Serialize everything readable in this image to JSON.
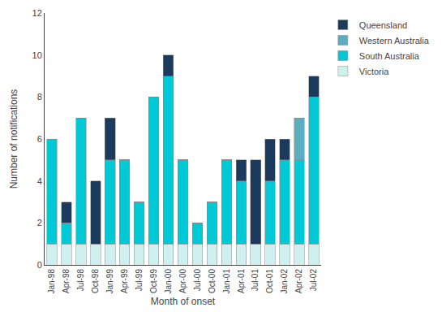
{
  "chart_data": {
    "type": "bar",
    "stacked": true,
    "xlabel": "Month of onset",
    "ylabel": "Number of notifications",
    "categories": [
      "Jan-98",
      "Apr-98",
      "Jul-98",
      "Oct-98",
      "Jan-99",
      "Apr-99",
      "Jul-99",
      "Oct-99",
      "Jan-00",
      "Apr-00",
      "Jul-00",
      "Oct-00",
      "Jan-01",
      "Apr-01",
      "Jul-01",
      "Oct-01",
      "Jan-02",
      "Apr-02",
      "Jul-02"
    ],
    "series": [
      {
        "name": "Victoria",
        "color": "#d0f0f0",
        "values": [
          1,
          1,
          1,
          1,
          1,
          1,
          1,
          1,
          1,
          1,
          1,
          1,
          1,
          1,
          1,
          1,
          1,
          1,
          1
        ]
      },
      {
        "name": "South Australia",
        "color": "#00c8d4",
        "values": [
          5,
          1,
          6,
          0,
          4,
          4,
          2,
          7,
          8,
          4,
          1,
          2,
          4,
          3,
          0,
          3,
          4,
          4,
          7
        ]
      },
      {
        "name": "Western Australia",
        "color": "#5badc0",
        "values": [
          0,
          0,
          0,
          0,
          0,
          0,
          0,
          0,
          0,
          0,
          0,
          0,
          0,
          0,
          0,
          0,
          0,
          2,
          0
        ]
      },
      {
        "name": "Queensland",
        "color": "#1b3a5c",
        "values": [
          0,
          1,
          0,
          3,
          2,
          0,
          0,
          0,
          1,
          0,
          0,
          0,
          0,
          1,
          4,
          2,
          1,
          0,
          1
        ]
      }
    ],
    "ylim": [
      0,
      12
    ],
    "yticks": [
      0,
      2,
      4,
      6,
      8,
      10,
      12
    ],
    "grid": false,
    "legend": "upper right"
  }
}
